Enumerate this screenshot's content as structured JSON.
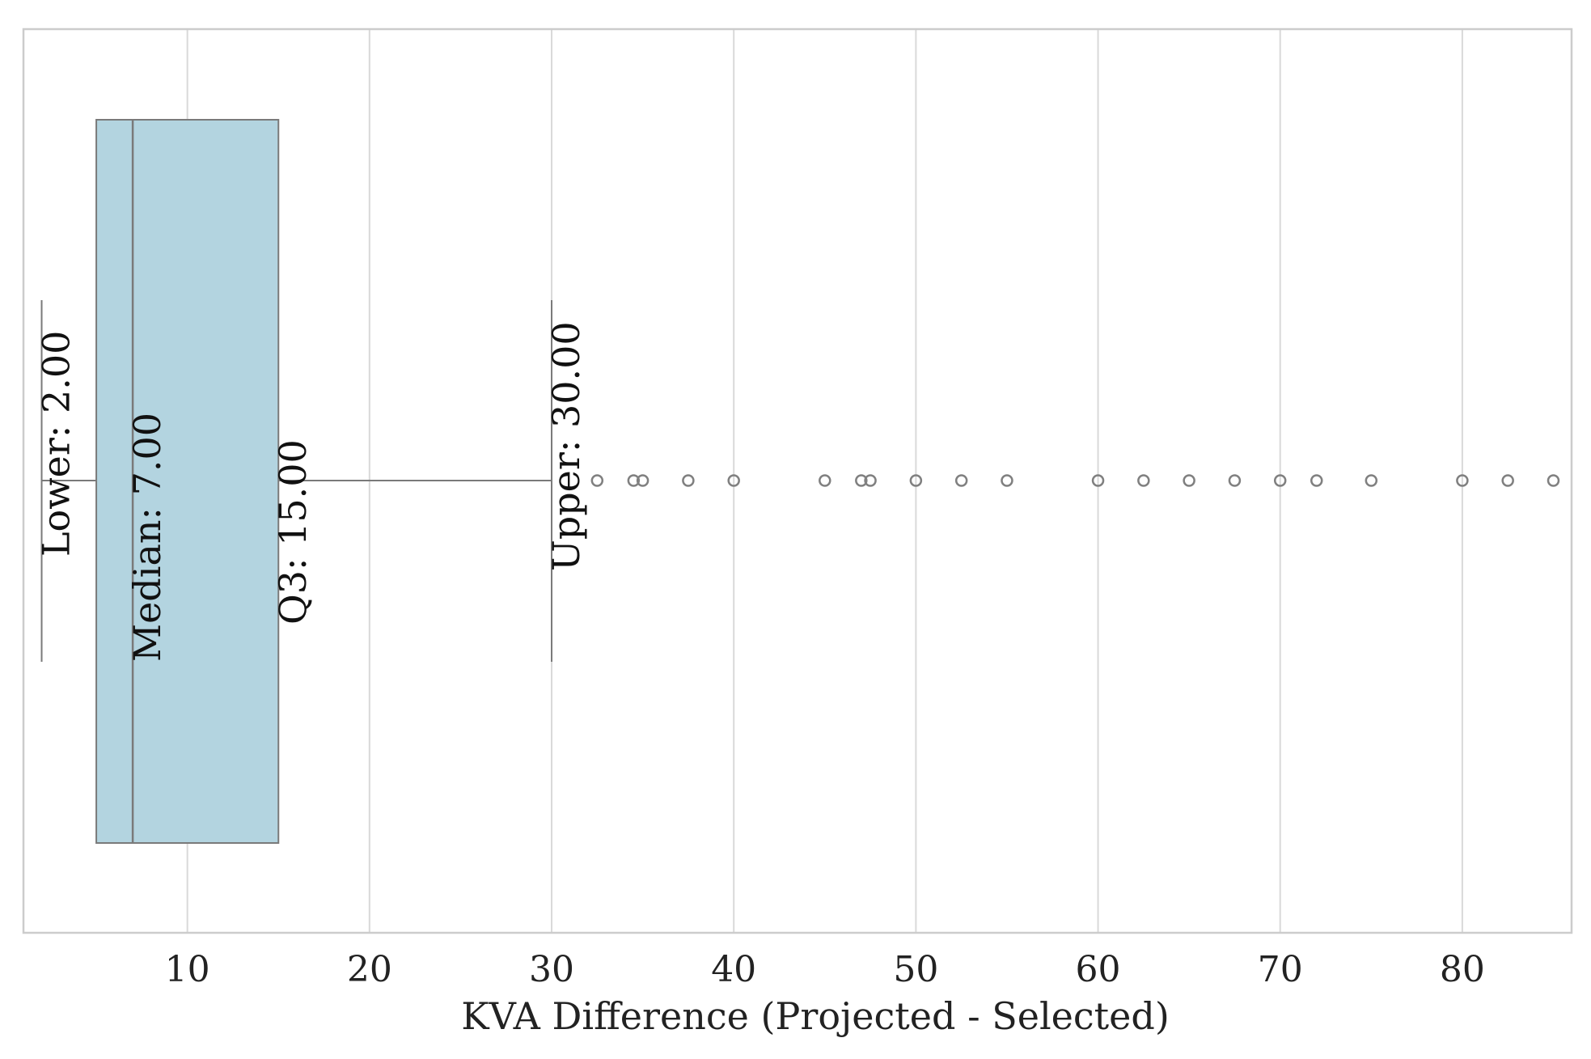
{
  "chart_data": {
    "type": "box",
    "orientation": "horizontal",
    "xlabel": "KVA Difference (Projected - Selected)",
    "ylabel": "",
    "xlim": [
      1.0,
      86.0
    ],
    "xticks": [
      10,
      20,
      30,
      40,
      50,
      60,
      70,
      80
    ],
    "xtick_labels": [
      "10",
      "20",
      "30",
      "40",
      "50",
      "60",
      "70",
      "80"
    ],
    "grid": true,
    "box": {
      "whisker_low": 2.0,
      "q1": 5.0,
      "median": 7.0,
      "q3": 15.0,
      "whisker_high": 30.0,
      "fill": "#b3d4e0",
      "edge": "#7a7a7a"
    },
    "outliers": [
      32.5,
      34.5,
      35.0,
      37.5,
      40.0,
      45.0,
      47.0,
      47.5,
      50.0,
      52.5,
      55.0,
      60.0,
      62.5,
      65.0,
      67.5,
      70.0,
      72.0,
      75.0,
      80.0,
      82.5,
      85.0
    ],
    "annotations": [
      {
        "id": "lower",
        "text": "Lower: 2.00",
        "x": 2.0
      },
      {
        "id": "median",
        "text": "Median: 7.00",
        "x": 7.0
      },
      {
        "id": "q3",
        "text": "Q3: 15.00",
        "x": 15.0
      },
      {
        "id": "upper",
        "text": "Upper: 30.00",
        "x": 30.0
      }
    ]
  }
}
